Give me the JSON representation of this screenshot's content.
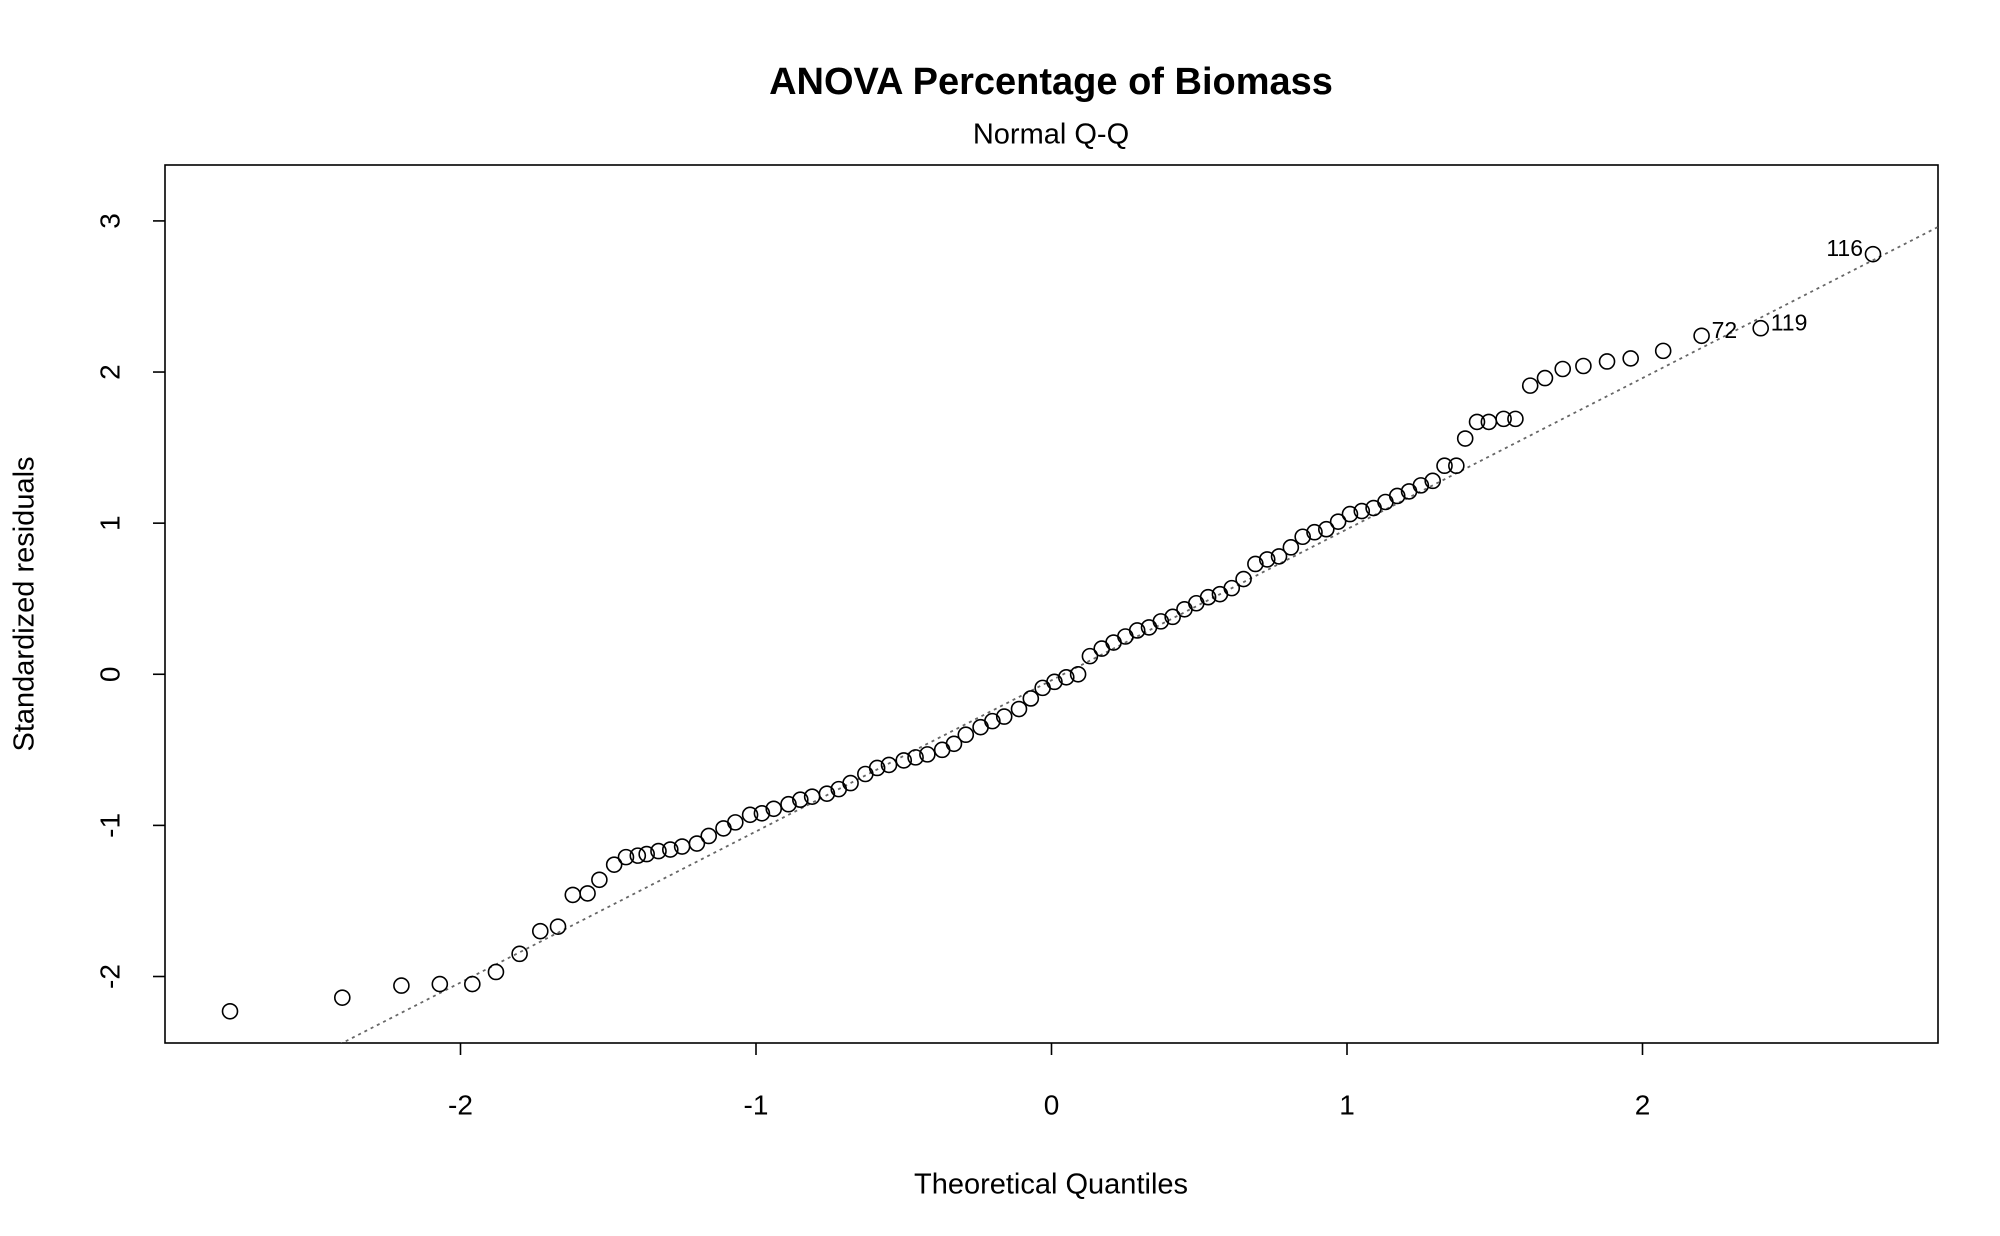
{
  "chart_data": {
    "type": "scatter",
    "title": "ANOVA Percentage of Biomass",
    "subtitle": "Normal Q-Q",
    "x_label": "Theoretical Quantiles",
    "y_label": "Standardized residuals",
    "xlim": [
      -3.0,
      3.0
    ],
    "ylim": [
      -2.44,
      3.37
    ],
    "xticks": [
      -2,
      -1,
      0,
      1,
      2
    ],
    "yticks": [
      -2,
      -1,
      0,
      1,
      2,
      3
    ],
    "color": "#000000",
    "reference_line": {
      "intercept": -0.04,
      "slope": 1.0,
      "color": "#666666"
    },
    "x": [
      -2.78,
      -2.4,
      -2.2,
      -2.07,
      -1.96,
      -1.88,
      -1.8,
      -1.73,
      -1.67,
      -1.62,
      -1.57,
      -1.53,
      -1.48,
      -1.44,
      -1.4,
      -1.37,
      -1.33,
      -1.29,
      -1.25,
      -1.2,
      -1.16,
      -1.11,
      -1.07,
      -1.02,
      -0.98,
      -0.94,
      -0.89,
      -0.85,
      -0.81,
      -0.76,
      -0.72,
      -0.68,
      -0.63,
      -0.59,
      -0.55,
      -0.5,
      -0.46,
      -0.42,
      -0.37,
      -0.33,
      -0.29,
      -0.24,
      -0.2,
      -0.16,
      -0.11,
      -0.07,
      -0.03,
      0.01,
      0.05,
      0.09,
      0.13,
      0.17,
      0.21,
      0.25,
      0.29,
      0.33,
      0.37,
      0.41,
      0.45,
      0.49,
      0.53,
      0.57,
      0.61,
      0.65,
      0.69,
      0.73,
      0.77,
      0.81,
      0.85,
      0.89,
      0.93,
      0.97,
      1.01,
      1.05,
      1.09,
      1.13,
      1.17,
      1.21,
      1.25,
      1.29,
      1.33,
      1.37,
      1.4,
      1.44,
      1.48,
      1.53,
      1.57,
      1.62,
      1.67,
      1.73,
      1.8,
      1.88,
      1.96,
      2.07,
      2.2,
      2.4,
      2.78
    ],
    "y": [
      -2.23,
      -2.14,
      -2.06,
      -2.05,
      -2.05,
      -1.97,
      -1.85,
      -1.7,
      -1.67,
      -1.46,
      -1.45,
      -1.36,
      -1.26,
      -1.21,
      -1.2,
      -1.19,
      -1.17,
      -1.16,
      -1.14,
      -1.12,
      -1.07,
      -1.02,
      -0.98,
      -0.93,
      -0.92,
      -0.89,
      -0.86,
      -0.83,
      -0.81,
      -0.79,
      -0.76,
      -0.72,
      -0.66,
      -0.62,
      -0.6,
      -0.57,
      -0.55,
      -0.53,
      -0.5,
      -0.46,
      -0.4,
      -0.35,
      -0.31,
      -0.28,
      -0.23,
      -0.16,
      -0.09,
      -0.05,
      -0.02,
      0.0,
      0.12,
      0.17,
      0.21,
      0.25,
      0.29,
      0.31,
      0.35,
      0.38,
      0.43,
      0.47,
      0.51,
      0.53,
      0.57,
      0.63,
      0.73,
      0.76,
      0.78,
      0.84,
      0.91,
      0.94,
      0.96,
      1.01,
      1.06,
      1.08,
      1.1,
      1.14,
      1.18,
      1.21,
      1.25,
      1.28,
      1.38,
      1.38,
      1.56,
      1.67,
      1.67,
      1.69,
      1.69,
      1.91,
      1.96,
      2.02,
      2.04,
      2.07,
      2.09,
      2.14,
      2.24,
      2.29,
      2.78
    ],
    "point_labels": [
      null,
      null,
      null,
      null,
      null,
      null,
      null,
      null,
      null,
      null,
      null,
      null,
      null,
      null,
      null,
      null,
      null,
      null,
      null,
      null,
      null,
      null,
      null,
      null,
      null,
      null,
      null,
      null,
      null,
      null,
      null,
      null,
      null,
      null,
      null,
      null,
      null,
      null,
      null,
      null,
      null,
      null,
      null,
      null,
      null,
      null,
      null,
      null,
      null,
      null,
      null,
      null,
      null,
      null,
      null,
      null,
      null,
      null,
      null,
      null,
      null,
      null,
      null,
      null,
      null,
      null,
      null,
      null,
      null,
      null,
      null,
      null,
      null,
      null,
      null,
      null,
      null,
      null,
      null,
      null,
      null,
      null,
      null,
      null,
      null,
      null,
      null,
      null,
      null,
      null,
      null,
      null,
      null,
      null,
      "72",
      "119",
      "116"
    ]
  }
}
